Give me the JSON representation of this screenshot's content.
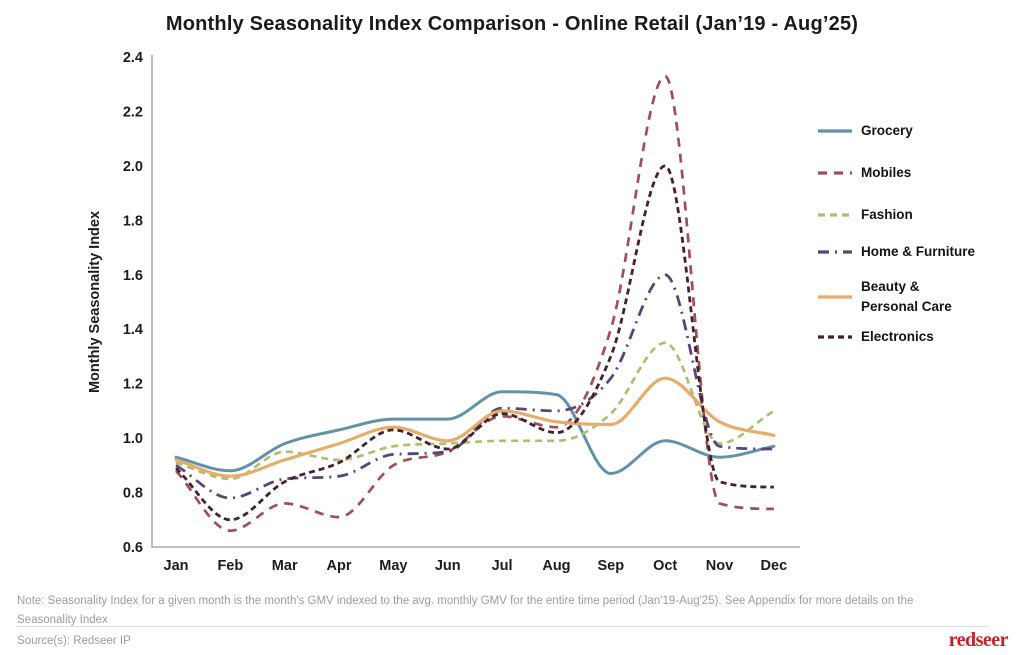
{
  "title": "Monthly Seasonality Index Comparison - Online Retail  (Jan’19 - Aug’25)",
  "chart_data": {
    "type": "line",
    "title": "Monthly Seasonality Index Comparison - Online Retail (Jan’19 - Aug’25)",
    "xlabel": "",
    "ylabel": "Monthly Seasonality Index",
    "ylim": [
      0.6,
      2.4
    ],
    "yticks": [
      0.6,
      0.8,
      1.0,
      1.2,
      1.4,
      1.6,
      1.8,
      2.0,
      2.2,
      2.4
    ],
    "grid": false,
    "legend_position": "right",
    "categories": [
      "Jan",
      "Feb",
      "Mar",
      "Apr",
      "May",
      "Jun",
      "Jul",
      "Aug",
      "Sep",
      "Oct",
      "Nov",
      "Dec"
    ],
    "series": [
      {
        "name": "Grocery",
        "legend_label": "Grocery",
        "color": "#6591a8",
        "dash": "solid",
        "width": 3,
        "values": [
          0.93,
          0.88,
          0.98,
          1.03,
          1.07,
          1.07,
          1.17,
          1.16,
          0.87,
          0.99,
          0.93,
          0.97
        ]
      },
      {
        "name": "Mobiles",
        "legend_label": "Mobiles",
        "color": "#9e4f57",
        "dash": "9 7",
        "width": 2.7,
        "values": [
          0.88,
          0.66,
          0.76,
          0.71,
          0.9,
          0.95,
          1.08,
          1.04,
          1.4,
          2.33,
          0.76,
          0.74
        ]
      },
      {
        "name": "Fashion",
        "legend_label": "Fashion",
        "color": "#adbd73",
        "dash": "7 5",
        "width": 2.7,
        "values": [
          0.91,
          0.85,
          0.95,
          0.92,
          0.97,
          0.98,
          0.99,
          0.99,
          1.09,
          1.35,
          0.98,
          1.1
        ]
      },
      {
        "name": "Home & Furniture",
        "legend_label": "Home & Furniture",
        "color": "#534878",
        "dash": "11 6 2 6",
        "width": 2.8,
        "values": [
          0.9,
          0.78,
          0.85,
          0.86,
          0.94,
          0.95,
          1.11,
          1.1,
          1.22,
          1.6,
          0.97,
          0.96
        ]
      },
      {
        "name": "Beauty & Personal Care",
        "legend_label": "Beauty &\nPersonal Care",
        "color": "#e7ac6b",
        "dash": "solid",
        "width": 3.2,
        "values": [
          0.92,
          0.86,
          0.92,
          0.98,
          1.04,
          0.99,
          1.1,
          1.06,
          1.05,
          1.22,
          1.06,
          1.01
        ]
      },
      {
        "name": "Electronics",
        "legend_label": "Electronics",
        "color": "#45222b",
        "dash": "6 4",
        "width": 2.8,
        "values": [
          0.89,
          0.7,
          0.84,
          0.91,
          1.03,
          0.96,
          1.09,
          1.02,
          1.3,
          2.0,
          0.84,
          0.82
        ]
      }
    ]
  },
  "footer": {
    "note": "Note: Seasonality Index for a given month is the month's GMV indexed to the avg. monthly GMV for the entire time period (Jan'19-Aug'25). See Appendix for more details on the Seasonality Index",
    "source": "Source(s): Redseer IP",
    "logo": "redseer"
  },
  "colors": {
    "axis": "#b3c2cc",
    "text": "#1c1c1c",
    "muted": "#9c9c9c",
    "logo_red": "#c2232b"
  }
}
